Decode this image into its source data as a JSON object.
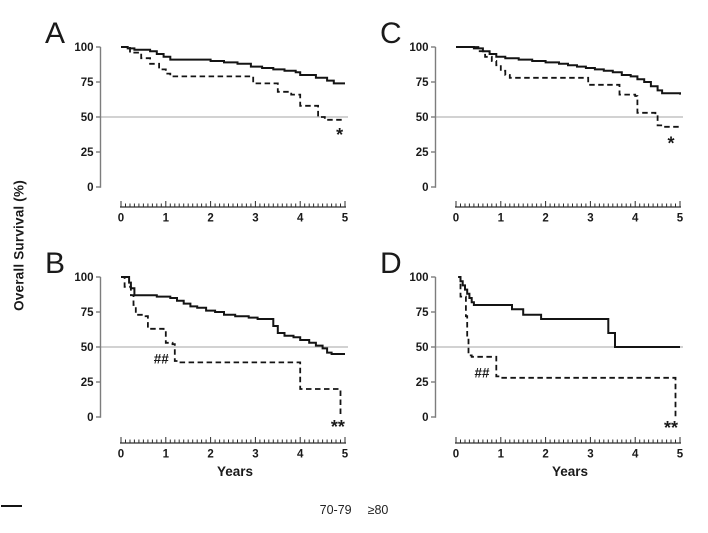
{
  "figure": {
    "ylabel": "Overall Survival (%)",
    "xlabel": "Years",
    "legend": [
      {
        "label": "70-79",
        "style": "solid"
      },
      {
        "label": "≥80",
        "style": "dashed"
      }
    ],
    "colors": {
      "curve": "#141414",
      "reference_line": "#b8b8b8",
      "y_axis": "#7d7d7d",
      "x_ruler": "#2e2e2e",
      "text": "#1a1a1a"
    }
  },
  "chart_data": [
    {
      "type": "line",
      "panel": "A",
      "title": "A",
      "xlim": [
        0,
        5
      ],
      "ylim": [
        0,
        100
      ],
      "x_ticks": [
        0,
        1,
        2,
        3,
        4,
        5
      ],
      "y_ticks": [
        100,
        75,
        50,
        25,
        0
      ],
      "reference_line_y": 50,
      "annotations": [
        {
          "text": "*",
          "x": 4.88,
          "y": 37
        }
      ],
      "series": [
        {
          "name": "70-79",
          "style": "solid",
          "points": [
            [
              0,
              100
            ],
            [
              0.15,
              99
            ],
            [
              0.3,
              98
            ],
            [
              0.65,
              97
            ],
            [
              0.8,
              95
            ],
            [
              0.95,
              93
            ],
            [
              1.1,
              91
            ],
            [
              2.0,
              90
            ],
            [
              2.3,
              89
            ],
            [
              2.6,
              88
            ],
            [
              2.9,
              86
            ],
            [
              3.15,
              85
            ],
            [
              3.4,
              84
            ],
            [
              3.65,
              83
            ],
            [
              3.9,
              82
            ],
            [
              4.0,
              80
            ],
            [
              4.35,
              78
            ],
            [
              4.6,
              76
            ],
            [
              4.75,
              74
            ],
            [
              5,
              74
            ]
          ]
        },
        {
          "name": "≥80",
          "style": "dashed",
          "points": [
            [
              0,
              100
            ],
            [
              0.2,
              96
            ],
            [
              0.45,
              92
            ],
            [
              0.65,
              88
            ],
            [
              0.85,
              84
            ],
            [
              1.0,
              81
            ],
            [
              1.1,
              79
            ],
            [
              2.9,
              79
            ],
            [
              2.95,
              74
            ],
            [
              3.45,
              74
            ],
            [
              3.5,
              68
            ],
            [
              3.8,
              66
            ],
            [
              3.95,
              66
            ],
            [
              4.0,
              58
            ],
            [
              4.35,
              58
            ],
            [
              4.4,
              50
            ],
            [
              4.55,
              48
            ],
            [
              5,
              48
            ]
          ]
        }
      ]
    },
    {
      "type": "line",
      "panel": "B",
      "title": "B",
      "xlim": [
        0,
        5
      ],
      "ylim": [
        0,
        100
      ],
      "x_ticks": [
        0,
        1,
        2,
        3,
        4,
        5
      ],
      "y_ticks": [
        100,
        75,
        50,
        25,
        0
      ],
      "reference_line_y": 50,
      "annotations": [
        {
          "text": "##",
          "x": 0.9,
          "y": 41
        },
        {
          "text": "**",
          "x": 4.84,
          "y": -7
        }
      ],
      "series": [
        {
          "name": "70-79",
          "style": "solid",
          "points": [
            [
              0,
              100
            ],
            [
              0.18,
              96
            ],
            [
              0.22,
              92
            ],
            [
              0.3,
              87
            ],
            [
              0.8,
              86
            ],
            [
              1.1,
              85
            ],
            [
              1.25,
              83
            ],
            [
              1.4,
              81
            ],
            [
              1.55,
              79
            ],
            [
              1.7,
              78
            ],
            [
              1.9,
              76
            ],
            [
              2.1,
              75
            ],
            [
              2.3,
              73
            ],
            [
              2.55,
              72
            ],
            [
              2.85,
              71
            ],
            [
              3.05,
              70
            ],
            [
              3.4,
              65
            ],
            [
              3.5,
              60
            ],
            [
              3.65,
              58
            ],
            [
              3.85,
              57
            ],
            [
              4.0,
              55
            ],
            [
              4.2,
              53
            ],
            [
              4.35,
              51
            ],
            [
              4.5,
              49
            ],
            [
              4.6,
              46
            ],
            [
              4.7,
              45
            ],
            [
              5,
              45
            ]
          ]
        },
        {
          "name": "≥80",
          "style": "dashed",
          "points": [
            [
              0,
              100
            ],
            [
              0.08,
              93
            ],
            [
              0.22,
              87
            ],
            [
              0.28,
              80
            ],
            [
              0.33,
              73
            ],
            [
              0.55,
              72
            ],
            [
              0.6,
              63
            ],
            [
              0.95,
              62
            ],
            [
              1.0,
              53
            ],
            [
              1.15,
              52
            ],
            [
              1.2,
              40
            ],
            [
              1.3,
              39
            ],
            [
              3.95,
              39
            ],
            [
              4.0,
              20
            ],
            [
              4.85,
              20
            ],
            [
              4.9,
              0
            ]
          ]
        }
      ]
    },
    {
      "type": "line",
      "panel": "C",
      "title": "C",
      "xlim": [
        0,
        5
      ],
      "ylim": [
        0,
        100
      ],
      "x_ticks": [
        0,
        1,
        2,
        3,
        4,
        5
      ],
      "y_ticks": [
        100,
        75,
        50,
        25,
        0
      ],
      "reference_line_y": 50,
      "annotations": [
        {
          "text": "*",
          "x": 4.8,
          "y": 31
        }
      ],
      "series": [
        {
          "name": "70-79",
          "style": "solid",
          "points": [
            [
              0,
              100
            ],
            [
              0.4,
              99
            ],
            [
              0.6,
              97
            ],
            [
              0.75,
              95
            ],
            [
              0.9,
              93
            ],
            [
              1.1,
              92
            ],
            [
              1.4,
              91
            ],
            [
              1.7,
              90
            ],
            [
              2.0,
              89
            ],
            [
              2.3,
              88
            ],
            [
              2.5,
              87
            ],
            [
              2.7,
              86
            ],
            [
              2.9,
              85
            ],
            [
              3.1,
              84
            ],
            [
              3.3,
              83
            ],
            [
              3.5,
              82
            ],
            [
              3.7,
              80
            ],
            [
              3.9,
              79
            ],
            [
              4.05,
              77
            ],
            [
              4.2,
              75
            ],
            [
              4.35,
              72
            ],
            [
              4.5,
              69
            ],
            [
              4.6,
              67
            ],
            [
              5,
              66
            ]
          ]
        },
        {
          "name": "≥80",
          "style": "dashed",
          "points": [
            [
              0,
              100
            ],
            [
              0.5,
              97
            ],
            [
              0.65,
              93
            ],
            [
              0.8,
              90
            ],
            [
              0.9,
              87
            ],
            [
              1.0,
              83
            ],
            [
              1.1,
              80
            ],
            [
              1.2,
              78
            ],
            [
              2.9,
              78
            ],
            [
              2.95,
              73
            ],
            [
              3.6,
              73
            ],
            [
              3.65,
              66
            ],
            [
              4.0,
              65
            ],
            [
              4.05,
              53
            ],
            [
              4.45,
              52
            ],
            [
              4.5,
              44
            ],
            [
              4.6,
              43
            ],
            [
              5,
              43
            ]
          ]
        }
      ]
    },
    {
      "type": "line",
      "panel": "D",
      "title": "D",
      "xlim": [
        0,
        5
      ],
      "ylim": [
        0,
        100
      ],
      "x_ticks": [
        0,
        1,
        2,
        3,
        4,
        5
      ],
      "y_ticks": [
        100,
        75,
        50,
        25,
        0
      ],
      "reference_line_y": 50,
      "annotations": [
        {
          "text": "##",
          "x": 0.58,
          "y": 31
        },
        {
          "text": "**",
          "x": 4.8,
          "y": -8
        }
      ],
      "series": [
        {
          "name": "70-79",
          "style": "solid",
          "points": [
            [
              0.05,
              100
            ],
            [
              0.1,
              97
            ],
            [
              0.15,
              94
            ],
            [
              0.2,
              91
            ],
            [
              0.25,
              88
            ],
            [
              0.3,
              85
            ],
            [
              0.35,
              82
            ],
            [
              0.4,
              80
            ],
            [
              1.2,
              80
            ],
            [
              1.25,
              77
            ],
            [
              1.45,
              77
            ],
            [
              1.5,
              73
            ],
            [
              1.85,
              73
            ],
            [
              1.9,
              70
            ],
            [
              3.35,
              70
            ],
            [
              3.4,
              60
            ],
            [
              3.5,
              60
            ],
            [
              3.55,
              50
            ],
            [
              5,
              50
            ]
          ]
        },
        {
          "name": "≥80",
          "style": "dashed",
          "points": [
            [
              0.05,
              100
            ],
            [
              0.1,
              86
            ],
            [
              0.2,
              86
            ],
            [
              0.22,
              72
            ],
            [
              0.25,
              57
            ],
            [
              0.28,
              44
            ],
            [
              0.35,
              43
            ],
            [
              0.85,
              43
            ],
            [
              0.9,
              29
            ],
            [
              1.0,
              28
            ],
            [
              4.85,
              28
            ],
            [
              4.9,
              0
            ]
          ]
        }
      ]
    }
  ]
}
